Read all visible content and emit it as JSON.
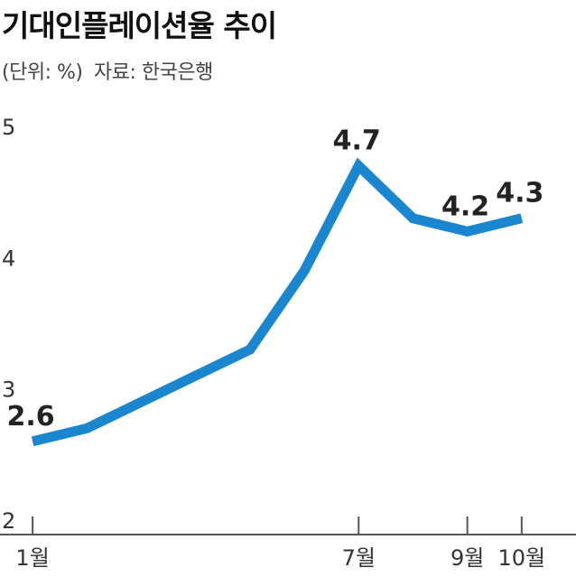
{
  "title": "기대인플레이션율 추이",
  "subtitle": {
    "unit": "(단위: %)",
    "source": "자료: 한국은행"
  },
  "colors": {
    "line": "#1a86d0",
    "axis": "#555555",
    "text": "#222222"
  },
  "chart_data": {
    "type": "line",
    "title": "기대인플레이션율 추이",
    "xlabel": "",
    "ylabel": "",
    "x": [
      1,
      2,
      3,
      4,
      5,
      6,
      7,
      8,
      9,
      10
    ],
    "x_tick_positions": [
      1,
      7,
      9,
      10
    ],
    "x_tick_labels": [
      "1월",
      "7월",
      "9월",
      "10월"
    ],
    "y_ticks": [
      2,
      3,
      4,
      5
    ],
    "ylim": [
      2,
      5
    ],
    "xlim": [
      0.4,
      11.0
    ],
    "grid": false,
    "legend": "none",
    "series": [
      {
        "values": [
          2.6,
          2.7,
          2.9,
          3.1,
          3.3,
          3.9,
          4.7,
          4.3,
          4.2,
          4.3
        ]
      }
    ],
    "data_labels": [
      {
        "x": 1,
        "text": "2.6"
      },
      {
        "x": 7,
        "text": "4.7"
      },
      {
        "x": 9,
        "text": "4.2"
      },
      {
        "x": 10,
        "text": "4.3"
      }
    ]
  }
}
